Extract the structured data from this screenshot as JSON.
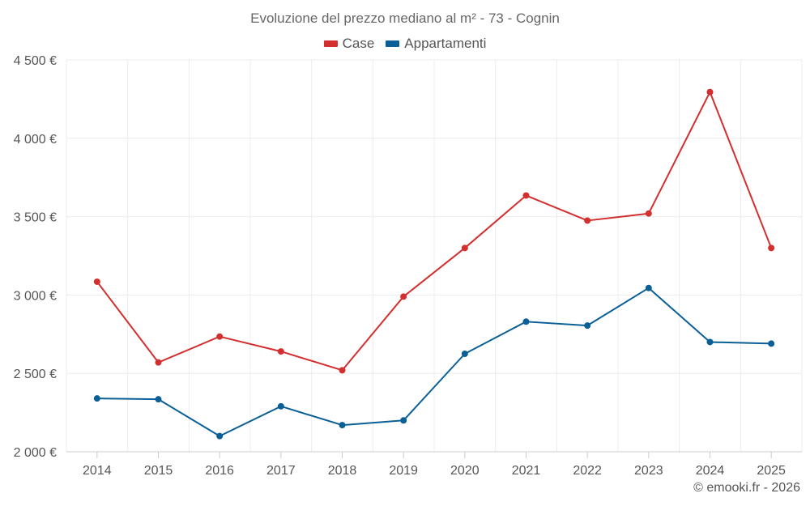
{
  "chart_data": {
    "type": "line",
    "title": "Evoluzione del prezzo mediano al m² - 73 - Cognin",
    "categories": [
      "2014",
      "2015",
      "2016",
      "2017",
      "2018",
      "2019",
      "2020",
      "2021",
      "2022",
      "2023",
      "2024",
      "2025"
    ],
    "series": [
      {
        "name": "Case",
        "color": "#d32f2f",
        "values": [
          3085,
          2570,
          2735,
          2640,
          2520,
          2990,
          3300,
          3635,
          3475,
          3520,
          4295,
          3300
        ]
      },
      {
        "name": "Appartamenti",
        "color": "#0a5f97",
        "values": [
          2340,
          2335,
          2100,
          2290,
          2170,
          2200,
          2625,
          2830,
          2805,
          3045,
          2700,
          2690
        ]
      }
    ],
    "y_ticks": [
      "2 000 €",
      "2 500 €",
      "3 000 €",
      "3 500 €",
      "4 000 €",
      "4 500 €"
    ],
    "y_tick_values": [
      2000,
      2500,
      3000,
      3500,
      4000,
      4500
    ],
    "ylim": [
      2000,
      4500
    ],
    "grid": true,
    "legend_position": "top-center"
  },
  "footer": {
    "credit": "© emooki.fr - 2026"
  }
}
